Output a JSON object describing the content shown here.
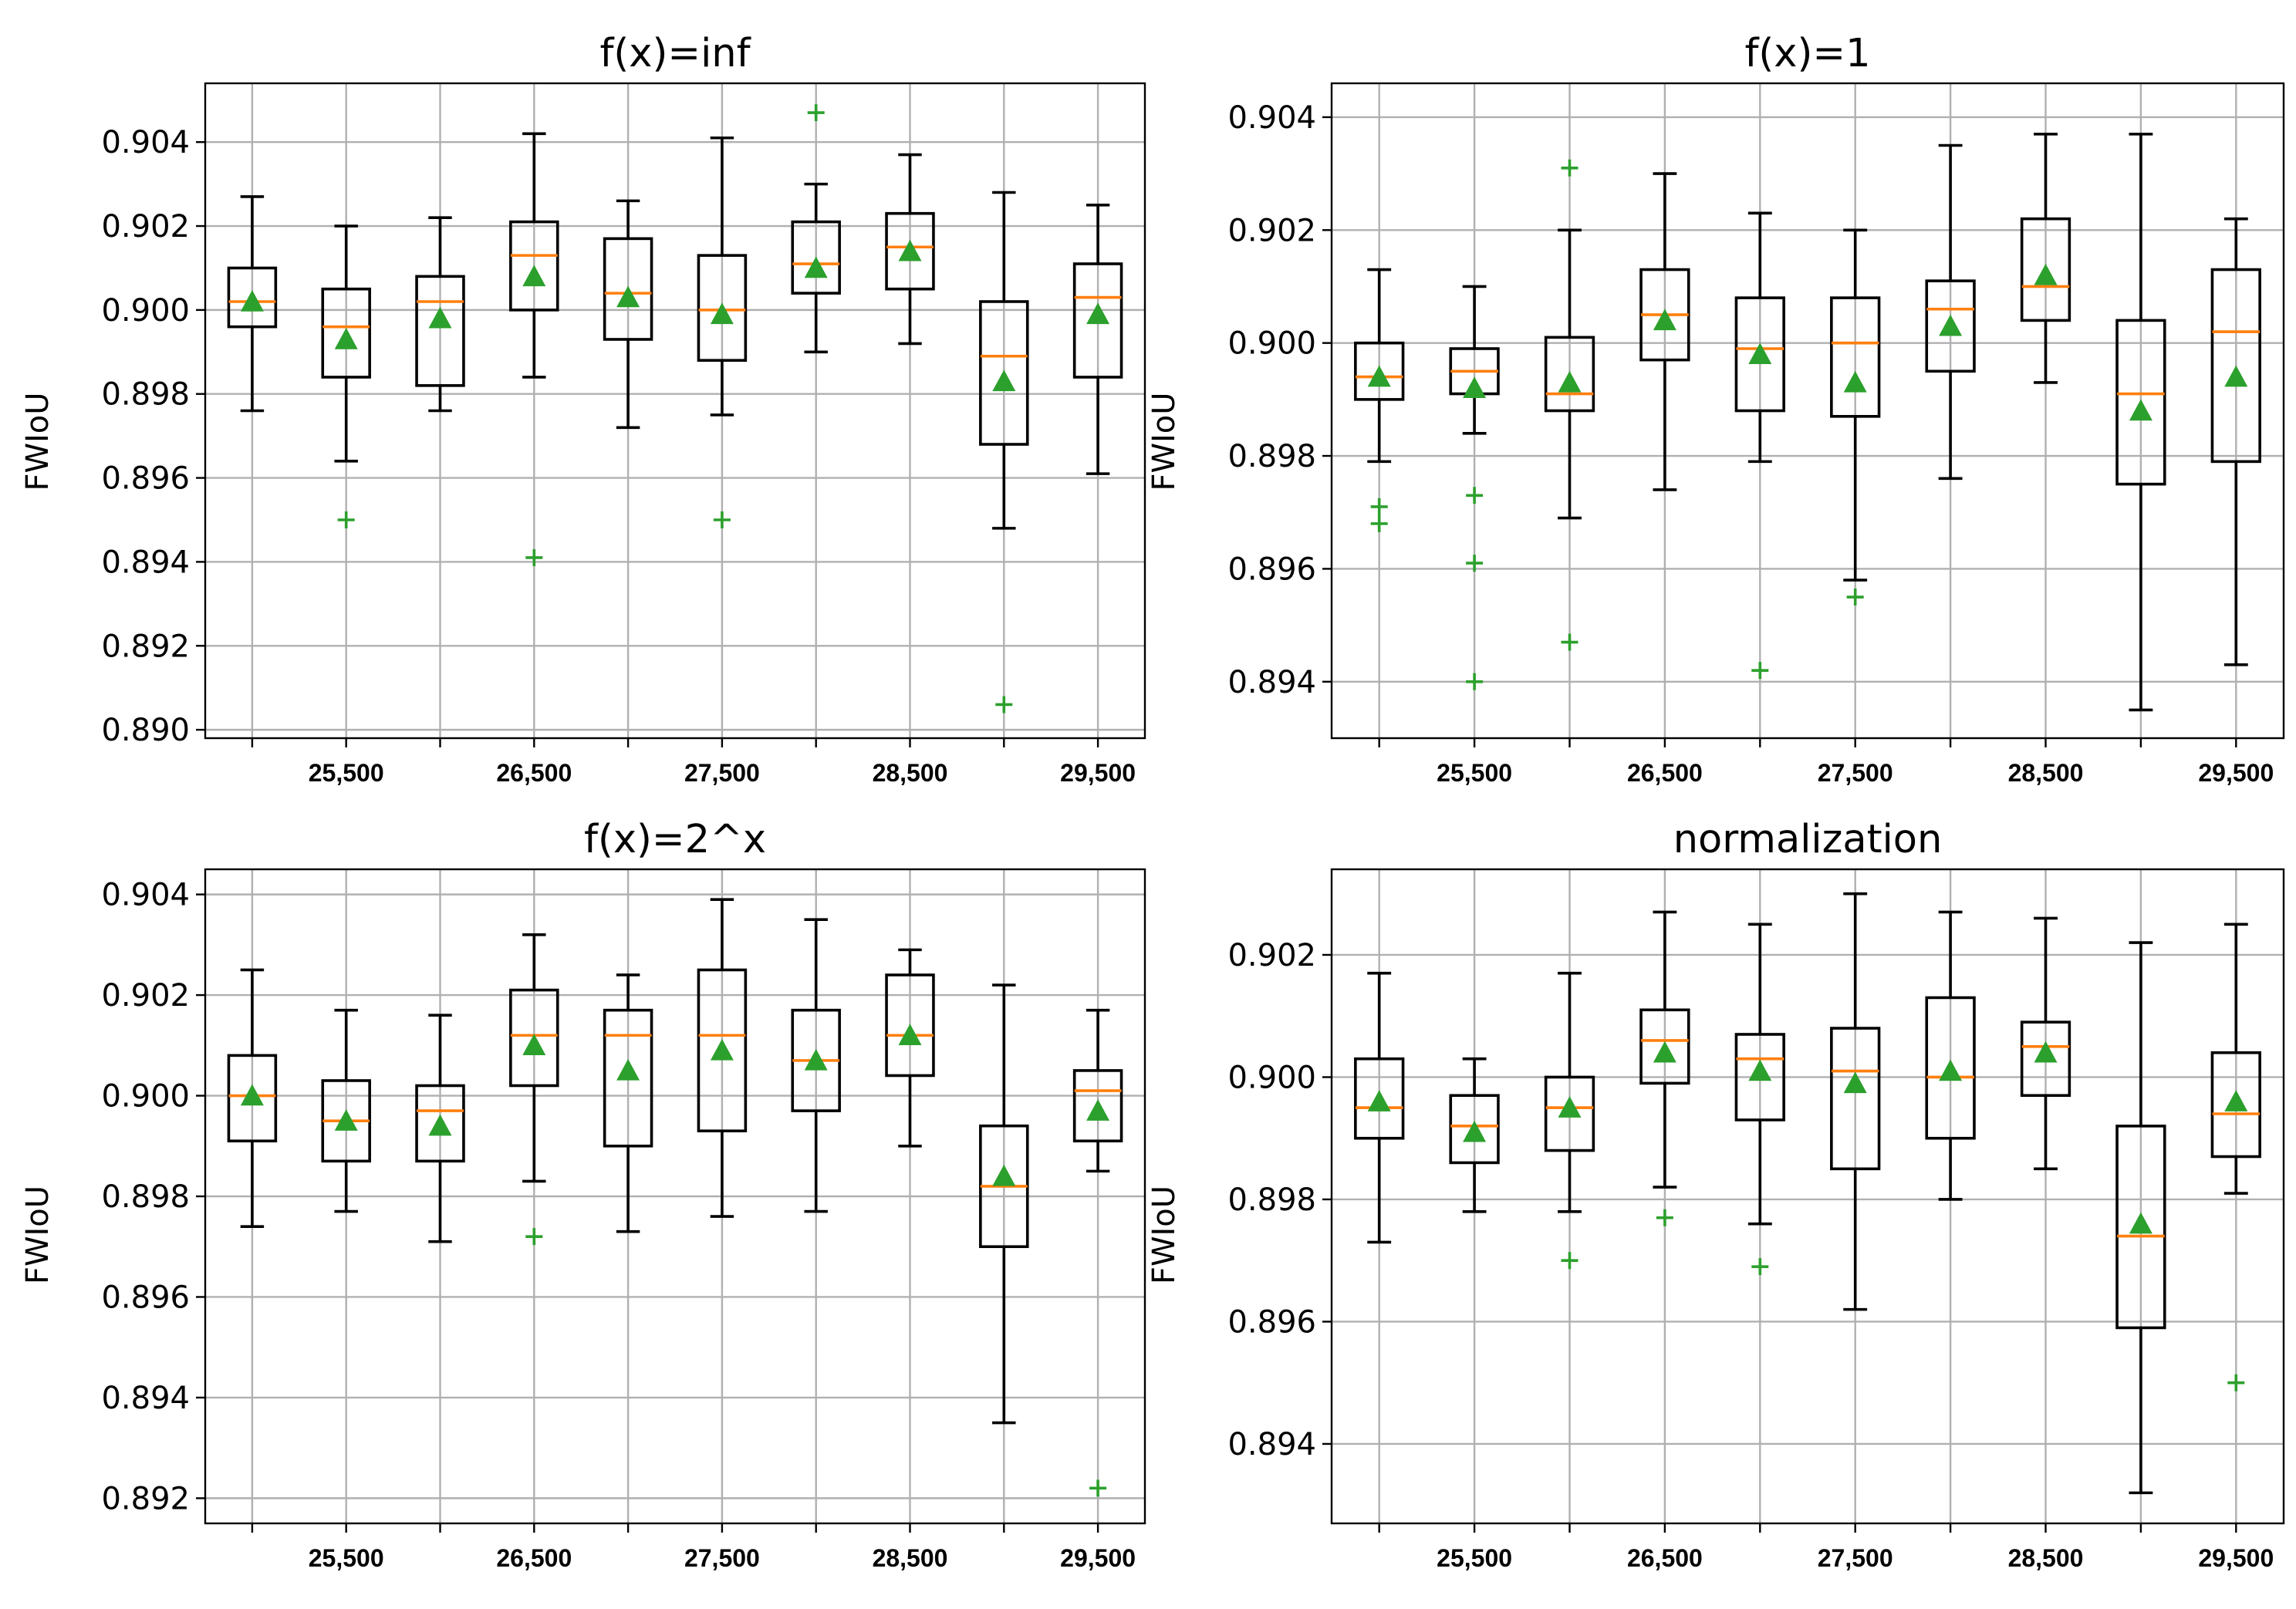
{
  "chart_data": [
    {
      "type": "box",
      "title": "f(x)=inf",
      "ylabel": "FWIoU",
      "xlabel": "",
      "ylim": [
        0.8898,
        0.9054
      ],
      "yticks": [
        0.89,
        0.892,
        0.894,
        0.896,
        0.898,
        0.9,
        0.902,
        0.904
      ],
      "ytick_labels": [
        "0.890",
        "0.892",
        "0.894",
        "0.896",
        "0.898",
        "0.900",
        "0.902",
        "0.904"
      ],
      "xtick_labels": [
        "25,500",
        "26,500",
        "27,500",
        "28,500",
        "29,500"
      ],
      "labelled_positions": [
        2,
        4,
        6,
        8,
        10
      ],
      "grid": true,
      "boxes": [
        {
          "whislo": 0.8976,
          "q1": 0.8996,
          "med": 0.9002,
          "q3": 0.901,
          "whishi": 0.9027,
          "mean": 0.9002,
          "fliers": []
        },
        {
          "whislo": 0.8964,
          "q1": 0.8984,
          "med": 0.8996,
          "q3": 0.9005,
          "whishi": 0.902,
          "mean": 0.8993,
          "fliers": [
            0.895
          ]
        },
        {
          "whislo": 0.8976,
          "q1": 0.8982,
          "med": 0.9002,
          "q3": 0.9008,
          "whishi": 0.9022,
          "mean": 0.8998,
          "fliers": []
        },
        {
          "whislo": 0.8984,
          "q1": 0.9,
          "med": 0.9013,
          "q3": 0.9021,
          "whishi": 0.9042,
          "mean": 0.9008,
          "fliers": [
            0.8941
          ]
        },
        {
          "whislo": 0.8972,
          "q1": 0.8993,
          "med": 0.9004,
          "q3": 0.9017,
          "whishi": 0.9026,
          "mean": 0.9003,
          "fliers": []
        },
        {
          "whislo": 0.8975,
          "q1": 0.8988,
          "med": 0.9,
          "q3": 0.9013,
          "whishi": 0.9041,
          "mean": 0.8999,
          "fliers": [
            0.895
          ]
        },
        {
          "whislo": 0.899,
          "q1": 0.9004,
          "med": 0.9011,
          "q3": 0.9021,
          "whishi": 0.903,
          "mean": 0.901,
          "fliers": [
            0.9047
          ]
        },
        {
          "whislo": 0.8992,
          "q1": 0.9005,
          "med": 0.9015,
          "q3": 0.9023,
          "whishi": 0.9037,
          "mean": 0.9014,
          "fliers": []
        },
        {
          "whislo": 0.8948,
          "q1": 0.8968,
          "med": 0.8989,
          "q3": 0.9002,
          "whishi": 0.9028,
          "mean": 0.8983,
          "fliers": [
            0.8906
          ]
        },
        {
          "whislo": 0.8961,
          "q1": 0.8984,
          "med": 0.9003,
          "q3": 0.9011,
          "whishi": 0.9025,
          "mean": 0.8999,
          "fliers": []
        }
      ]
    },
    {
      "type": "box",
      "title": "f(x)=1",
      "ylabel": "FWIoU",
      "xlabel": "",
      "ylim": [
        0.893,
        0.9046
      ],
      "yticks": [
        0.894,
        0.896,
        0.898,
        0.9,
        0.902,
        0.904
      ],
      "ytick_labels": [
        "0.894",
        "0.896",
        "0.898",
        "0.900",
        "0.902",
        "0.904"
      ],
      "xtick_labels": [
        "25,500",
        "26,500",
        "27,500",
        "28,500",
        "29,500"
      ],
      "labelled_positions": [
        2,
        4,
        6,
        8,
        10
      ],
      "grid": true,
      "boxes": [
        {
          "whislo": 0.8979,
          "q1": 0.899,
          "med": 0.8994,
          "q3": 0.9,
          "whishi": 0.9013,
          "mean": 0.8994,
          "fliers": [
            0.8971,
            0.8968
          ]
        },
        {
          "whislo": 0.8984,
          "q1": 0.8991,
          "med": 0.8995,
          "q3": 0.8999,
          "whishi": 0.901,
          "mean": 0.8992,
          "fliers": [
            0.8973,
            0.8961,
            0.894
          ]
        },
        {
          "whislo": 0.8969,
          "q1": 0.8988,
          "med": 0.8991,
          "q3": 0.9001,
          "whishi": 0.902,
          "mean": 0.8993,
          "fliers": [
            0.9031,
            0.8947
          ]
        },
        {
          "whislo": 0.8974,
          "q1": 0.8997,
          "med": 0.9005,
          "q3": 0.9013,
          "whishi": 0.903,
          "mean": 0.9004,
          "fliers": []
        },
        {
          "whislo": 0.8979,
          "q1": 0.8988,
          "med": 0.8999,
          "q3": 0.9008,
          "whishi": 0.9023,
          "mean": 0.8998,
          "fliers": [
            0.8942
          ]
        },
        {
          "whislo": 0.8958,
          "q1": 0.8987,
          "med": 0.9,
          "q3": 0.9008,
          "whishi": 0.902,
          "mean": 0.8993,
          "fliers": [
            0.8955
          ]
        },
        {
          "whislo": 0.8976,
          "q1": 0.8995,
          "med": 0.9006,
          "q3": 0.9011,
          "whishi": 0.9035,
          "mean": 0.9003,
          "fliers": []
        },
        {
          "whislo": 0.8993,
          "q1": 0.9004,
          "med": 0.901,
          "q3": 0.9022,
          "whishi": 0.9037,
          "mean": 0.9012,
          "fliers": []
        },
        {
          "whislo": 0.8935,
          "q1": 0.8975,
          "med": 0.8991,
          "q3": 0.9004,
          "whishi": 0.9037,
          "mean": 0.8988,
          "fliers": []
        },
        {
          "whislo": 0.8943,
          "q1": 0.8979,
          "med": 0.9002,
          "q3": 0.9013,
          "whishi": 0.9022,
          "mean": 0.8994,
          "fliers": []
        }
      ]
    },
    {
      "type": "box",
      "title": "f(x)=2^x",
      "ylabel": "FWIoU",
      "xlabel": "",
      "ylim": [
        0.8915,
        0.9045
      ],
      "yticks": [
        0.892,
        0.894,
        0.896,
        0.898,
        0.9,
        0.902,
        0.904
      ],
      "ytick_labels": [
        "0.892",
        "0.894",
        "0.896",
        "0.898",
        "0.900",
        "0.902",
        "0.904"
      ],
      "xtick_labels": [
        "25,500",
        "26,500",
        "27,500",
        "28,500",
        "29,500"
      ],
      "labelled_positions": [
        2,
        4,
        6,
        8,
        10
      ],
      "grid": true,
      "boxes": [
        {
          "whislo": 0.8974,
          "q1": 0.8991,
          "med": 0.9,
          "q3": 0.9008,
          "whishi": 0.9025,
          "mean": 0.9,
          "fliers": []
        },
        {
          "whislo": 0.8977,
          "q1": 0.8987,
          "med": 0.8995,
          "q3": 0.9003,
          "whishi": 0.9017,
          "mean": 0.8995,
          "fliers": []
        },
        {
          "whislo": 0.8971,
          "q1": 0.8987,
          "med": 0.8997,
          "q3": 0.9002,
          "whishi": 0.9016,
          "mean": 0.8994,
          "fliers": []
        },
        {
          "whislo": 0.8983,
          "q1": 0.9002,
          "med": 0.9012,
          "q3": 0.9021,
          "whishi": 0.9032,
          "mean": 0.901,
          "fliers": [
            0.8972
          ]
        },
        {
          "whislo": 0.8973,
          "q1": 0.899,
          "med": 0.9012,
          "q3": 0.9017,
          "whishi": 0.9024,
          "mean": 0.9005,
          "fliers": []
        },
        {
          "whislo": 0.8976,
          "q1": 0.8993,
          "med": 0.9012,
          "q3": 0.9025,
          "whishi": 0.9039,
          "mean": 0.9009,
          "fliers": []
        },
        {
          "whislo": 0.8977,
          "q1": 0.8997,
          "med": 0.9007,
          "q3": 0.9017,
          "whishi": 0.9035,
          "mean": 0.9007,
          "fliers": []
        },
        {
          "whislo": 0.899,
          "q1": 0.9004,
          "med": 0.9012,
          "q3": 0.9024,
          "whishi": 0.9029,
          "mean": 0.9012,
          "fliers": []
        },
        {
          "whislo": 0.8935,
          "q1": 0.897,
          "med": 0.8982,
          "q3": 0.8994,
          "whishi": 0.9022,
          "mean": 0.8984,
          "fliers": []
        },
        {
          "whislo": 0.8985,
          "q1": 0.8991,
          "med": 0.9001,
          "q3": 0.9005,
          "whishi": 0.9017,
          "mean": 0.8997,
          "fliers": [
            0.8922
          ]
        }
      ]
    },
    {
      "type": "box",
      "title": "normalization",
      "ylabel": "FWIoU",
      "xlabel": "",
      "ylim": [
        0.8927,
        0.9034
      ],
      "yticks": [
        0.894,
        0.896,
        0.898,
        0.9,
        0.902
      ],
      "ytick_labels": [
        "0.894",
        "0.896",
        "0.898",
        "0.900",
        "0.902"
      ],
      "xtick_labels": [
        "25,500",
        "26,500",
        "27,500",
        "28,500",
        "29,500"
      ],
      "labelled_positions": [
        2,
        4,
        6,
        8,
        10
      ],
      "grid": true,
      "boxes": [
        {
          "whislo": 0.8973,
          "q1": 0.899,
          "med": 0.8995,
          "q3": 0.9003,
          "whishi": 0.9017,
          "mean": 0.8996,
          "fliers": []
        },
        {
          "whislo": 0.8978,
          "q1": 0.8986,
          "med": 0.8992,
          "q3": 0.8997,
          "whishi": 0.9003,
          "mean": 0.8991,
          "fliers": []
        },
        {
          "whislo": 0.8978,
          "q1": 0.8988,
          "med": 0.8995,
          "q3": 0.9,
          "whishi": 0.9017,
          "mean": 0.8995,
          "fliers": [
            0.897
          ]
        },
        {
          "whislo": 0.8982,
          "q1": 0.8999,
          "med": 0.9006,
          "q3": 0.9011,
          "whishi": 0.9027,
          "mean": 0.9004,
          "fliers": [
            0.8977
          ]
        },
        {
          "whislo": 0.8976,
          "q1": 0.8993,
          "med": 0.9003,
          "q3": 0.9007,
          "whishi": 0.9025,
          "mean": 0.9001,
          "fliers": [
            0.8969
          ]
        },
        {
          "whislo": 0.8962,
          "q1": 0.8985,
          "med": 0.9001,
          "q3": 0.9008,
          "whishi": 0.903,
          "mean": 0.8999,
          "fliers": []
        },
        {
          "whislo": 0.898,
          "q1": 0.899,
          "med": 0.9,
          "q3": 0.9013,
          "whishi": 0.9027,
          "mean": 0.9001,
          "fliers": []
        },
        {
          "whislo": 0.8985,
          "q1": 0.8997,
          "med": 0.9005,
          "q3": 0.9009,
          "whishi": 0.9026,
          "mean": 0.9004,
          "fliers": []
        },
        {
          "whislo": 0.8932,
          "q1": 0.8959,
          "med": 0.8974,
          "q3": 0.8992,
          "whishi": 0.9022,
          "mean": 0.8976,
          "fliers": []
        },
        {
          "whislo": 0.8981,
          "q1": 0.8987,
          "med": 0.8994,
          "q3": 0.9004,
          "whishi": 0.9025,
          "mean": 0.8996,
          "fliers": [
            0.895
          ]
        }
      ]
    }
  ]
}
